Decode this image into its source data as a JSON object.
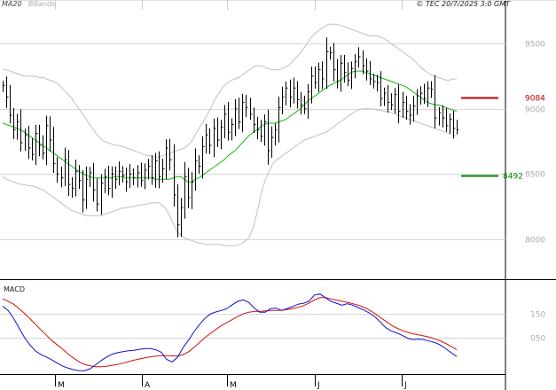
{
  "header": {
    "legend_ma20": "MA20",
    "legend_bbands": "BBands",
    "copyright": "© TEC 20/7/2025 3:0 GMT"
  },
  "macd_panel": {
    "title": "MACD"
  },
  "colors": {
    "price_bar": "#000000",
    "ma20": "#13b513",
    "bbands": "#c0c0c0",
    "grid": "#d8d8d8",
    "resistance": "#c00000",
    "support": "#008000",
    "macd": "#1010d0",
    "signal": "#d01010"
  },
  "chart_data": [
    {
      "type": "ohlc",
      "name": "price",
      "ylim": [
        7700,
        9760
      ],
      "y_ticks": [
        "9500",
        "9000",
        "8500",
        "8000"
      ],
      "x_ticks": [
        "M",
        "A",
        "M",
        "J",
        "J"
      ],
      "grid": true,
      "legend": [
        "MA20",
        "BBands"
      ],
      "close": [
        9180,
        9090,
        8950,
        8840,
        8900,
        8740,
        8800,
        8700,
        8650,
        8810,
        8720,
        8660,
        8870,
        8760,
        8580,
        8500,
        8470,
        8610,
        8420,
        8390,
        8520,
        8450,
        8300,
        8460,
        8510,
        8380,
        8270,
        8430,
        8480,
        8390,
        8500,
        8460,
        8520,
        8490,
        8440,
        8500,
        8470,
        8510,
        8450,
        8530,
        8560,
        8470,
        8600,
        8480,
        8540,
        8700,
        8610,
        8340,
        8110,
        8240,
        8480,
        8320,
        8440,
        8600,
        8560,
        8710,
        8800,
        8720,
        8850,
        8760,
        8860,
        8960,
        8820,
        8880,
        9000,
        8900,
        9050,
        9010,
        8960,
        8880,
        8840,
        8790,
        8900,
        8680,
        8780,
        8840,
        9010,
        9090,
        9160,
        9090,
        9160,
        9070,
        9030,
        9000,
        9130,
        9250,
        9200,
        9300,
        9230,
        9440,
        9430,
        9300,
        9210,
        9350,
        9280,
        9220,
        9310,
        9360,
        9400,
        9330,
        9290,
        9230,
        9210,
        9200,
        9080,
        9120,
        9050,
        9030,
        9110,
        8980,
        9050,
        8980,
        8950,
        9020,
        9100,
        9120,
        9080,
        9160,
        9150,
        8930,
        8970,
        8930,
        8870,
        8920,
        8850,
        8840
      ],
      "ma20": [
        8890,
        8880,
        8870,
        8860,
        8850,
        8840,
        8820,
        8800,
        8780,
        8760,
        8740,
        8720,
        8700,
        8680,
        8660,
        8640,
        8620,
        8600,
        8580,
        8560,
        8540,
        8520,
        8505,
        8490,
        8480,
        8470,
        8470,
        8470,
        8470,
        8470,
        8470,
        8480,
        8480,
        8480,
        8470,
        8470,
        8470,
        8470,
        8470,
        8470,
        8470,
        8470,
        8460,
        8460,
        8460,
        8460,
        8460,
        8470,
        8480,
        8480,
        8460,
        8440,
        8440,
        8460,
        8470,
        8490,
        8510,
        8530,
        8550,
        8570,
        8590,
        8610,
        8640,
        8660,
        8680,
        8710,
        8740,
        8770,
        8800,
        8820,
        8840,
        8860,
        8880,
        8890,
        8890,
        8890,
        8900,
        8910,
        8920,
        8940,
        8960,
        8980,
        9000,
        9030,
        9060,
        9080,
        9100,
        9120,
        9140,
        9160,
        9180,
        9190,
        9210,
        9220,
        9240,
        9260,
        9280,
        9290,
        9290,
        9290,
        9280,
        9270,
        9260,
        9250,
        9240,
        9230,
        9220,
        9210,
        9200,
        9190,
        9180,
        9170,
        9150,
        9130,
        9110,
        9090,
        9070,
        9050,
        9040,
        9030,
        9030,
        9020,
        9010,
        9000,
        8990,
        8980
      ],
      "bb_upper": [
        9300,
        9300,
        9290,
        9280,
        9270,
        9260,
        9250,
        9250,
        9250,
        9250,
        9240,
        9240,
        9230,
        9220,
        9210,
        9200,
        9170,
        9140,
        9110,
        9080,
        9040,
        9000,
        8960,
        8920,
        8880,
        8840,
        8800,
        8770,
        8750,
        8740,
        8730,
        8720,
        8720,
        8710,
        8700,
        8690,
        8680,
        8670,
        8660,
        8650,
        8640,
        8640,
        8630,
        8630,
        8640,
        8650,
        8660,
        8670,
        8680,
        8690,
        8700,
        8720,
        8750,
        8800,
        8850,
        8890,
        8940,
        8990,
        9050,
        9100,
        9140,
        9180,
        9200,
        9220,
        9230,
        9240,
        9260,
        9280,
        9300,
        9320,
        9330,
        9330,
        9320,
        9310,
        9300,
        9300,
        9300,
        9310,
        9320,
        9340,
        9370,
        9400,
        9430,
        9470,
        9510,
        9550,
        9580,
        9600,
        9620,
        9640,
        9650,
        9650,
        9650,
        9640,
        9630,
        9620,
        9610,
        9600,
        9590,
        9580,
        9570,
        9560,
        9560,
        9560,
        9550,
        9540,
        9520,
        9500,
        9480,
        9460,
        9440,
        9420,
        9400,
        9380,
        9350,
        9320,
        9300,
        9280,
        9260,
        9250,
        9240,
        9230,
        9220,
        9220,
        9230,
        9230
      ],
      "bb_lower": [
        8480,
        8460,
        8450,
        8440,
        8430,
        8420,
        8420,
        8410,
        8410,
        8400,
        8390,
        8380,
        8360,
        8340,
        8320,
        8300,
        8280,
        8260,
        8240,
        8220,
        8210,
        8200,
        8190,
        8180,
        8180,
        8180,
        8180,
        8180,
        8190,
        8200,
        8210,
        8220,
        8230,
        8240,
        8240,
        8250,
        8250,
        8260,
        8260,
        8270,
        8270,
        8280,
        8280,
        8280,
        8260,
        8230,
        8180,
        8120,
        8060,
        8030,
        8010,
        8000,
        7990,
        7980,
        7970,
        7970,
        7960,
        7960,
        7960,
        7960,
        7960,
        7950,
        7950,
        7950,
        7950,
        7960,
        7970,
        7990,
        8020,
        8090,
        8200,
        8330,
        8430,
        8500,
        8560,
        8600,
        8620,
        8640,
        8660,
        8680,
        8700,
        8720,
        8740,
        8760,
        8770,
        8780,
        8790,
        8800,
        8810,
        8820,
        8840,
        8860,
        8880,
        8900,
        8920,
        8940,
        8960,
        8980,
        8990,
        9000,
        9000,
        9000,
        9000,
        8990,
        8990,
        8980,
        8980,
        8970,
        8960,
        8950,
        8940,
        8930,
        8920,
        8910,
        8900,
        8890,
        8880,
        8870,
        8860,
        8850,
        8840,
        8830,
        8820,
        8810,
        8800,
        8790
      ],
      "levels": [
        {
          "label": "9084",
          "value": 9084,
          "color": "#c00000"
        },
        {
          "label": "8492",
          "value": 8492,
          "color": "#008000"
        }
      ]
    },
    {
      "type": "line",
      "name": "MACD",
      "ylim": [
        -1.0,
        2.8
      ],
      "y_ticks": [
        "150",
        "050"
      ],
      "macd": [
        1.8,
        1.62,
        1.3,
        0.9,
        0.5,
        0.2,
        -0.05,
        -0.2,
        -0.3,
        -0.42,
        -0.55,
        -0.68,
        -0.76,
        -0.82,
        -0.86,
        -0.86,
        -0.78,
        -0.62,
        -0.45,
        -0.3,
        -0.18,
        -0.12,
        -0.08,
        -0.04,
        -0.02,
        0.02,
        0.05,
        0.05,
        0.0,
        -0.1,
        -0.4,
        -0.5,
        -0.3,
        0.1,
        0.4,
        0.75,
        1.05,
        1.3,
        1.48,
        1.56,
        1.62,
        1.7,
        1.86,
        2.0,
        2.06,
        1.95,
        1.72,
        1.55,
        1.55,
        1.7,
        1.72,
        1.62,
        1.7,
        1.78,
        1.88,
        1.92,
        2.0,
        2.26,
        2.3,
        2.15,
        2.0,
        1.92,
        1.84,
        1.9,
        1.84,
        1.74,
        1.64,
        1.52,
        1.37,
        1.15,
        0.92,
        0.78,
        0.7,
        0.6,
        0.48,
        0.42,
        0.44,
        0.42,
        0.36,
        0.3,
        0.2,
        0.04,
        -0.12,
        -0.28
      ],
      "signal": [
        2.1,
        2.0,
        1.88,
        1.7,
        1.5,
        1.28,
        1.05,
        0.82,
        0.6,
        0.38,
        0.2,
        0.02,
        -0.18,
        -0.35,
        -0.5,
        -0.6,
        -0.66,
        -0.7,
        -0.7,
        -0.68,
        -0.64,
        -0.6,
        -0.55,
        -0.49,
        -0.43,
        -0.38,
        -0.33,
        -0.29,
        -0.26,
        -0.24,
        -0.24,
        -0.25,
        -0.26,
        -0.2,
        -0.08,
        0.1,
        0.3,
        0.5,
        0.68,
        0.84,
        1.0,
        1.12,
        1.25,
        1.38,
        1.48,
        1.55,
        1.58,
        1.58,
        1.6,
        1.62,
        1.62,
        1.63,
        1.66,
        1.7,
        1.75,
        1.82,
        1.92,
        2.05,
        2.15,
        2.15,
        2.1,
        2.05,
        2.0,
        1.96,
        1.9,
        1.84,
        1.76,
        1.64,
        1.5,
        1.34,
        1.18,
        1.02,
        0.9,
        0.8,
        0.72,
        0.66,
        0.62,
        0.57,
        0.52,
        0.45,
        0.37,
        0.26,
        0.14,
        0.0
      ]
    }
  ]
}
